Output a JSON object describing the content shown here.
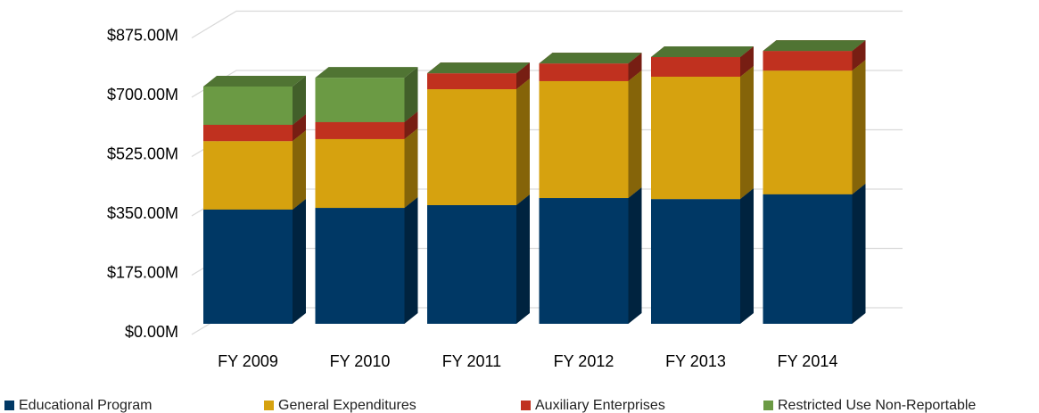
{
  "chart_data": {
    "type": "bar3d_stacked",
    "categories": [
      "FY 2009",
      "FY 2010",
      "FY 2011",
      "FY 2012",
      "FY 2013",
      "FY 2014"
    ],
    "series": [
      {
        "name": "Educational Program",
        "color": "#003865",
        "values": [
          337,
          342,
          350,
          371,
          368,
          382
        ]
      },
      {
        "name": "General Expenditures",
        "color": "#d6a20f",
        "values": [
          202,
          203,
          342,
          345,
          361,
          365
        ]
      },
      {
        "name": "Auxiliary Enterprises",
        "color": "#c0311f",
        "values": [
          48,
          50,
          47,
          52,
          58,
          58
        ]
      },
      {
        "name": "Restricted Use Non-Reportable",
        "color": "#6b9a44",
        "values": [
          113,
          131,
          0,
          0,
          0,
          0
        ]
      }
    ],
    "ylim": [
      0,
      875
    ],
    "yticks": [
      {
        "value": 0,
        "label": "$0.00M"
      },
      {
        "value": 175,
        "label": "$175.00M"
      },
      {
        "value": 350,
        "label": "$350.00M"
      },
      {
        "value": 525,
        "label": "$525.00M"
      },
      {
        "value": 700,
        "label": "$700.00M"
      },
      {
        "value": 875,
        "label": "$875.00M"
      }
    ],
    "grid": true,
    "legend": "bottom"
  }
}
